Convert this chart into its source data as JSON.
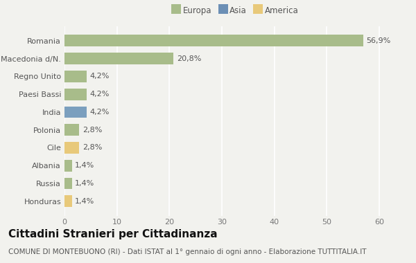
{
  "categories": [
    "Romania",
    "Macedonia d/N.",
    "Regno Unito",
    "Paesi Bassi",
    "India",
    "Polonia",
    "Cile",
    "Albania",
    "Russia",
    "Honduras"
  ],
  "values": [
    56.9,
    20.8,
    4.2,
    4.2,
    4.2,
    2.8,
    2.8,
    1.4,
    1.4,
    1.4
  ],
  "labels": [
    "56,9%",
    "20,8%",
    "4,2%",
    "4,2%",
    "4,2%",
    "2,8%",
    "2,8%",
    "1,4%",
    "1,4%",
    "1,4%"
  ],
  "continents": [
    "Europa",
    "Europa",
    "Europa",
    "Europa",
    "Asia",
    "Europa",
    "America",
    "Europa",
    "Europa",
    "America"
  ],
  "colors": {
    "Europa": "#a8bc8a",
    "Asia": "#7b9fbe",
    "America": "#e8c97a"
  },
  "legend_colors": {
    "Europa": "#a8bc8a",
    "Asia": "#6b8fb5",
    "America": "#e8c97a"
  },
  "xlim": [
    0,
    65
  ],
  "xticks": [
    0,
    10,
    20,
    30,
    40,
    50,
    60
  ],
  "title": "Cittadini Stranieri per Cittadinanza",
  "subtitle": "COMUNE DI MONTEBUONO (RI) - Dati ISTAT al 1° gennaio di ogni anno - Elaborazione TUTTITALIA.IT",
  "background_color": "#f2f2ee",
  "bar_height": 0.65,
  "grid_color": "#ffffff",
  "title_fontsize": 11,
  "subtitle_fontsize": 7.5,
  "label_fontsize": 8,
  "tick_fontsize": 8,
  "legend_fontsize": 8.5
}
